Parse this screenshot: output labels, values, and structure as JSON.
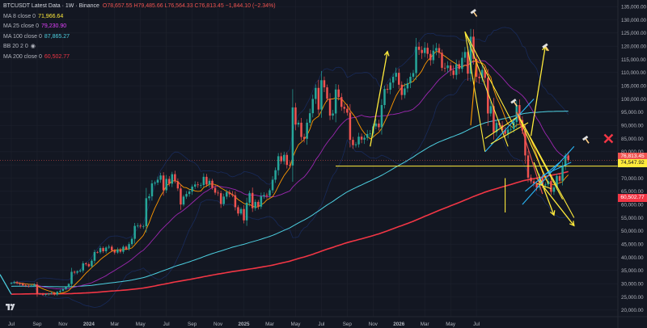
{
  "legend": {
    "symbol_title": "BTCUSDT Latest Data · 1W · Binance",
    "ohlc": "O78,657.55 H79,485.66 L76,564.33 C76,813.45 −1,844.10 (−2.34%)",
    "indicators": [
      {
        "label": "MA 8 close 0",
        "value": "71,966.64",
        "color": "#ffeb3b"
      },
      {
        "label": "MA 25 close 0",
        "value": "79,230.90",
        "color": "#e040fb"
      },
      {
        "label": "MA 100 close 0",
        "value": "87,865.27",
        "color": "#4dd0e1"
      },
      {
        "label": "BB 20 2 0",
        "value": "",
        "color": "#b2b5be",
        "eye": true
      },
      {
        "label": "MA 200 close 0",
        "value": "60,502.77",
        "color": "#f23645"
      }
    ]
  },
  "price_tags": {
    "last": "76,813.45",
    "hline": "74,547.92",
    "ma200": "60,502.77"
  },
  "colors": {
    "background": "#131722",
    "up": "#26a69a",
    "down": "#ef5350",
    "ma200": "#f23645",
    "ma100": "#4dd0e1",
    "ma25": "#9c27b0",
    "ma8": "#ff9800",
    "drawing_yellow": "#ffeb3b",
    "drawing_blue": "#29b6f6"
  },
  "chart_data": {
    "type": "candlestick",
    "y_axis_ticks": [
      "135,000.00",
      "130,000.00",
      "125,000.00",
      "120,000.00",
      "115,000.00",
      "110,000.00",
      "105,000.00",
      "100,000.00",
      "95,000.00",
      "90,000.00",
      "85,000.00",
      "80,000.00",
      "75,000.00",
      "70,000.00",
      "65,000.00",
      "60,000.00",
      "55,000.00",
      "50,000.00",
      "45,000.00",
      "40,000.00",
      "35,000.00",
      "30,000.00",
      "25,000.00",
      "20,000.00"
    ],
    "x_axis_ticks": [
      "Jul",
      "Sep",
      "Nov",
      "2024",
      "Mar",
      "May",
      "Jul",
      "Sep",
      "Nov",
      "2025",
      "Mar",
      "May",
      "Jul",
      "Sep",
      "Nov",
      "2026",
      "Mar",
      "May",
      "Jul"
    ],
    "x_tick_index": [
      0,
      9,
      18,
      27,
      36,
      45,
      54,
      63,
      72,
      81,
      90,
      99,
      108,
      117,
      126,
      135,
      144,
      153,
      162
    ],
    "y_range": [
      17500,
      137500
    ],
    "weekly_close": [
      30300,
      30600,
      30200,
      29900,
      29400,
      29200,
      29100,
      29300,
      29700,
      26200,
      26100,
      25800,
      26000,
      26200,
      26500,
      25900,
      26900,
      27300,
      28000,
      28700,
      29900,
      34500,
      34200,
      34700,
      35000,
      37700,
      37400,
      36600,
      38700,
      42000,
      41900,
      43500,
      42300,
      43700,
      44000,
      42600,
      41800,
      42900,
      42100,
      44000,
      43100,
      45000,
      47000,
      51900,
      52000,
      51700,
      51800,
      62400,
      63100,
      68000,
      68300,
      69400,
      71000,
      65400,
      69700,
      67900,
      71500,
      68800,
      66100,
      60000,
      63000,
      64000,
      64900,
      66800,
      67600,
      67400,
      67400,
      70500,
      67600,
      69000,
      66300,
      64500,
      64300,
      60200,
      63000,
      64700,
      63900,
      63500,
      59000,
      56600,
      58300,
      54000,
      60700,
      64400,
      58600,
      61000,
      59200,
      63100,
      63600,
      63300,
      65400,
      69400,
      73000,
      78300,
      76400,
      78800,
      75000,
      74800,
      96800,
      90300,
      91000,
      85600,
      84900,
      91000,
      94600,
      100000,
      104200,
      96000,
      107100,
      104400,
      100100,
      93700,
      94500,
      103600,
      100700,
      97000,
      96300,
      94800,
      84500,
      82500,
      82800,
      85700,
      84600,
      85300,
      86700,
      86900,
      89600,
      90700,
      89300,
      97700,
      103800,
      103500,
      106200,
      108400,
      109900,
      105400,
      101500,
      104000,
      106000,
      108400,
      109800,
      119800,
      118600,
      117400,
      119400,
      117100,
      114700,
      118300,
      119300,
      117500,
      111800,
      111700,
      112700,
      110800,
      109100,
      113200,
      111400,
      115600,
      117800,
      109600,
      123600,
      115200,
      108400,
      107900,
      111000,
      108000,
      94500,
      97300,
      87400,
      90900,
      90100,
      88200,
      86800,
      88400,
      88600,
      91300,
      97700,
      92000,
      88000,
      78600,
      70200,
      68800,
      68000,
      66400,
      70400,
      67300,
      67600,
      68900,
      64800,
      66500,
      70800,
      69000,
      74600,
      78600,
      76813
    ]
  },
  "drawings": {
    "annotations": [
      "hammer",
      "hammer",
      "hammer",
      "hammer",
      "x-mark"
    ]
  }
}
